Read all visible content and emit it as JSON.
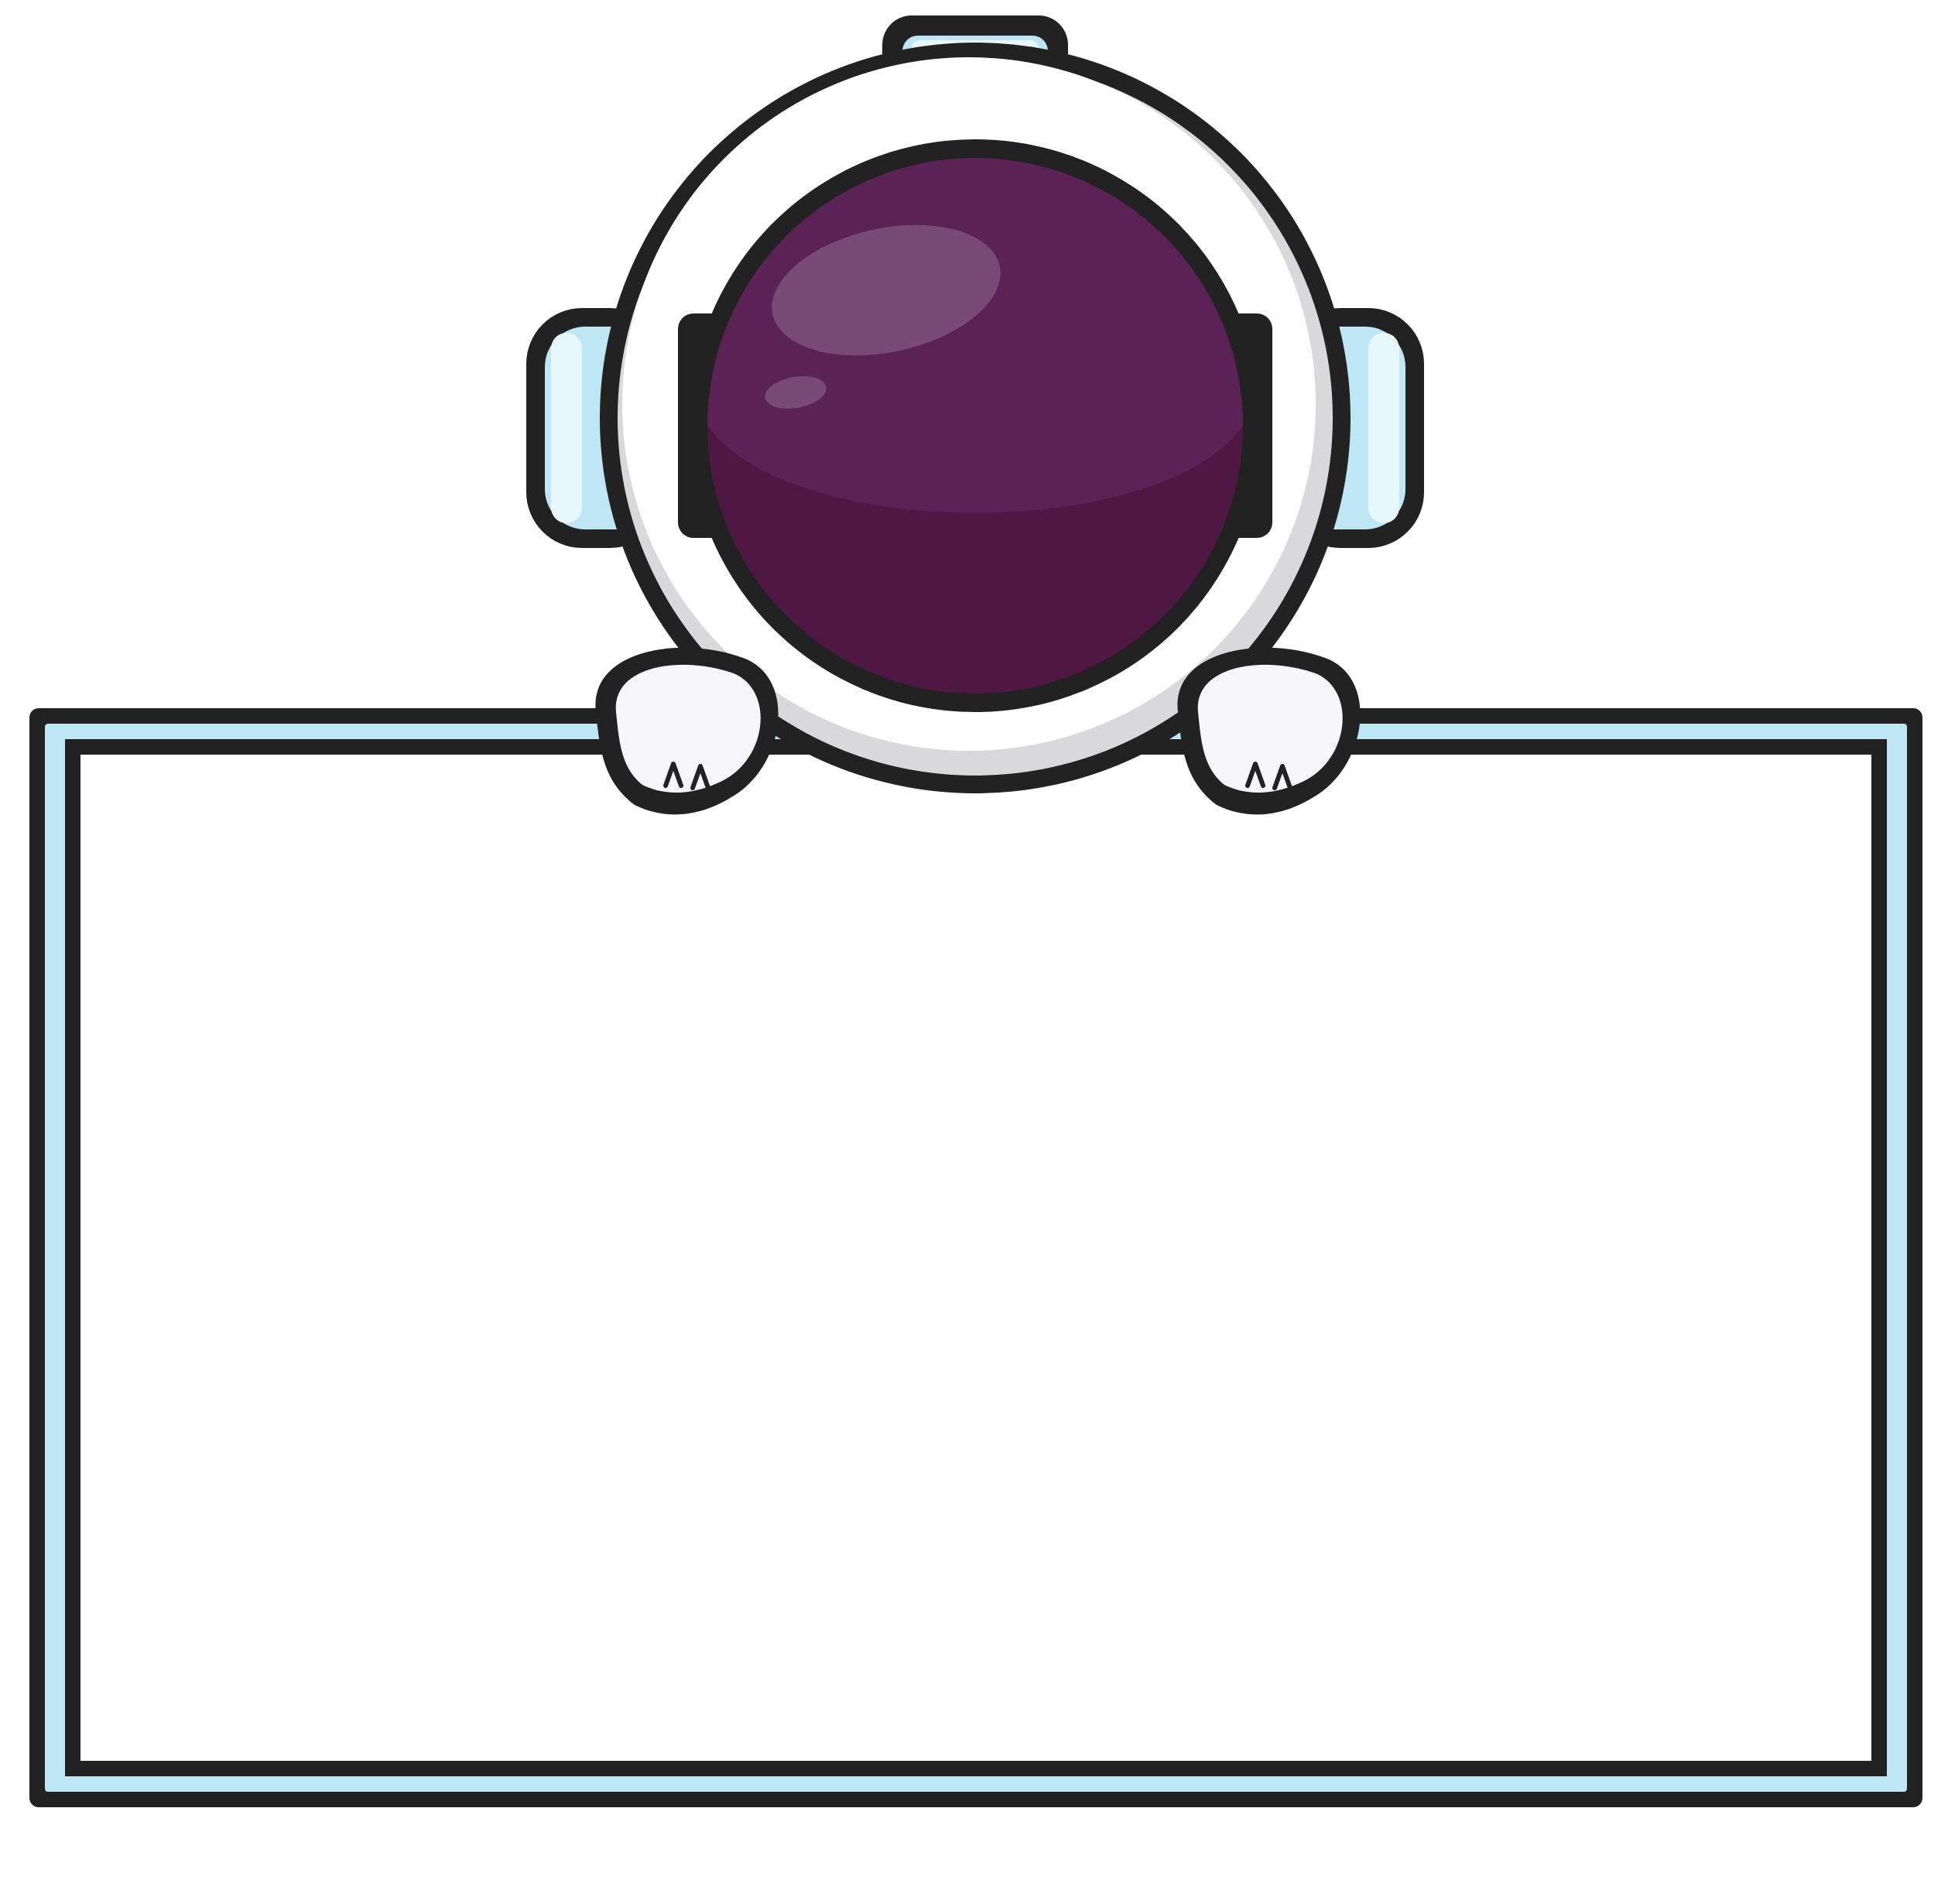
{
  "illustration": {
    "subject": "astronaut-holding-blank-sign",
    "sign_text": "",
    "colors": {
      "outline": "#222222",
      "visor_dark": "#4e1744",
      "visor_mid": "#5b2355",
      "visor_highlight": "#7a4a76",
      "helmet_white": "#ffffff",
      "helmet_shade": "#d9d9dc",
      "accent_light_blue": "#bfe6f5",
      "accent_blue_highlight": "#e8f7fc",
      "sign_fill": "#ffffff",
      "glove_white": "#f7f7f9"
    }
  }
}
